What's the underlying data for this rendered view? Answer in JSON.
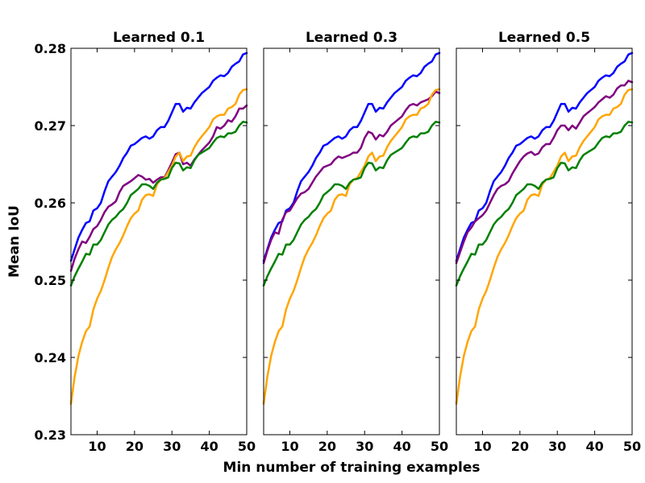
{
  "chart_data": {
    "type": "line",
    "xlabel": "Min number of training examples",
    "ylabel": "Mean IoU",
    "xlim": [
      3,
      50
    ],
    "ylim": [
      0.23,
      0.28
    ],
    "xticks": [
      10,
      20,
      30,
      40,
      50
    ],
    "yticks": [
      "0.23",
      "0.24",
      "0.25",
      "0.26",
      "0.27",
      "0.28"
    ],
    "grid": false,
    "legend": "none",
    "x": [
      3,
      4,
      5,
      6,
      7,
      8,
      9,
      10,
      11,
      12,
      13,
      14,
      15,
      16,
      17,
      18,
      19,
      20,
      21,
      22,
      23,
      24,
      25,
      26,
      27,
      28,
      29,
      30,
      31,
      32,
      33,
      34,
      35,
      36,
      37,
      38,
      39,
      40,
      41,
      42,
      43,
      44,
      45,
      46,
      47,
      48,
      49,
      50
    ],
    "panels": [
      {
        "title": "Learned 0.1",
        "series": [
          {
            "color": "#0000ff",
            "values": [
              0.2525,
              0.254,
              0.2555,
              0.2565,
              0.2574,
              0.2576,
              0.259,
              0.2593,
              0.26,
              0.2615,
              0.2628,
              0.2634,
              0.264,
              0.2648,
              0.2658,
              0.2665,
              0.2674,
              0.2676,
              0.268,
              0.2684,
              0.2686,
              0.2683,
              0.2686,
              0.2694,
              0.2698,
              0.2698,
              0.2706,
              0.2717,
              0.2728,
              0.2728,
              0.2718,
              0.2723,
              0.2722,
              0.273,
              0.2736,
              0.2742,
              0.2746,
              0.275,
              0.2758,
              0.2762,
              0.2765,
              0.2764,
              0.2768,
              0.2776,
              0.278,
              0.2783,
              0.2792,
              0.2794
            ]
          },
          {
            "color": "#800080",
            "values": [
              0.2512,
              0.2528,
              0.254,
              0.255,
              0.2548,
              0.2556,
              0.2566,
              0.257,
              0.2578,
              0.2588,
              0.2595,
              0.2598,
              0.2602,
              0.2614,
              0.2622,
              0.2625,
              0.2628,
              0.2632,
              0.2636,
              0.2634,
              0.263,
              0.2631,
              0.2626,
              0.263,
              0.2633,
              0.2633,
              0.2642,
              0.2652,
              0.2663,
              0.2665,
              0.265,
              0.2652,
              0.2648,
              0.2656,
              0.2662,
              0.2668,
              0.2673,
              0.2678,
              0.2686,
              0.2698,
              0.2696,
              0.27,
              0.2707,
              0.2705,
              0.2712,
              0.2722,
              0.2722,
              0.2726
            ]
          },
          {
            "color": "#ffa500",
            "values": [
              0.234,
              0.2375,
              0.2402,
              0.242,
              0.2434,
              0.244,
              0.2462,
              0.2476,
              0.2486,
              0.25,
              0.2516,
              0.253,
              0.254,
              0.2548,
              0.2558,
              0.257,
              0.258,
              0.2586,
              0.259,
              0.2604,
              0.261,
              0.2611,
              0.2609,
              0.2624,
              0.263,
              0.2632,
              0.264,
              0.2648,
              0.266,
              0.2665,
              0.2654,
              0.266,
              0.2661,
              0.2672,
              0.268,
              0.2686,
              0.2692,
              0.2698,
              0.2708,
              0.2712,
              0.2714,
              0.2714,
              0.2722,
              0.2724,
              0.2728,
              0.274,
              0.2746,
              0.2747
            ]
          },
          {
            "color": "#008000",
            "values": [
              0.2493,
              0.2505,
              0.2515,
              0.2524,
              0.2534,
              0.2533,
              0.2546,
              0.2546,
              0.2552,
              0.2562,
              0.2572,
              0.2578,
              0.2582,
              0.2588,
              0.2592,
              0.26,
              0.261,
              0.2614,
              0.2618,
              0.2624,
              0.2624,
              0.2622,
              0.2618,
              0.2626,
              0.263,
              0.2631,
              0.2633,
              0.2645,
              0.2652,
              0.2651,
              0.2642,
              0.2646,
              0.2645,
              0.2655,
              0.2662,
              0.2665,
              0.2668,
              0.2671,
              0.2678,
              0.2684,
              0.2686,
              0.2685,
              0.269,
              0.269,
              0.2692,
              0.27,
              0.2705,
              0.2704
            ]
          }
        ]
      },
      {
        "title": "Learned 0.3",
        "series": [
          {
            "color": "#0000ff",
            "values": [
              0.2525,
              0.254,
              0.2555,
              0.2565,
              0.2574,
              0.2576,
              0.259,
              0.2593,
              0.26,
              0.2615,
              0.2628,
              0.2634,
              0.264,
              0.2648,
              0.2658,
              0.2665,
              0.2674,
              0.2676,
              0.268,
              0.2684,
              0.2686,
              0.2683,
              0.2686,
              0.2694,
              0.2698,
              0.2698,
              0.2706,
              0.2717,
              0.2728,
              0.2728,
              0.2718,
              0.2723,
              0.2722,
              0.273,
              0.2736,
              0.2742,
              0.2746,
              0.275,
              0.2758,
              0.2762,
              0.2765,
              0.2764,
              0.2768,
              0.2776,
              0.278,
              0.2783,
              0.2792,
              0.2794
            ]
          },
          {
            "color": "#800080",
            "values": [
              0.2522,
              0.2538,
              0.2552,
              0.2562,
              0.256,
              0.2578,
              0.2588,
              0.259,
              0.2598,
              0.2606,
              0.2612,
              0.2614,
              0.2618,
              0.2626,
              0.2634,
              0.264,
              0.2646,
              0.2648,
              0.265,
              0.2656,
              0.266,
              0.2658,
              0.266,
              0.2662,
              0.2665,
              0.2665,
              0.2671,
              0.2684,
              0.2692,
              0.269,
              0.2682,
              0.2688,
              0.2686,
              0.2692,
              0.27,
              0.2704,
              0.2708,
              0.2712,
              0.272,
              0.2726,
              0.2728,
              0.2726,
              0.273,
              0.2732,
              0.2734,
              0.2738,
              0.2744,
              0.2742
            ]
          },
          {
            "color": "#ffa500",
            "values": [
              0.234,
              0.2375,
              0.2402,
              0.242,
              0.2434,
              0.244,
              0.2462,
              0.2476,
              0.2486,
              0.25,
              0.2516,
              0.253,
              0.254,
              0.2548,
              0.2558,
              0.257,
              0.258,
              0.2586,
              0.259,
              0.2604,
              0.261,
              0.2611,
              0.2609,
              0.2624,
              0.263,
              0.2632,
              0.264,
              0.2648,
              0.266,
              0.2665,
              0.2654,
              0.266,
              0.2661,
              0.2672,
              0.268,
              0.2686,
              0.2692,
              0.2698,
              0.2708,
              0.2712,
              0.2714,
              0.2714,
              0.2722,
              0.2724,
              0.2728,
              0.274,
              0.2746,
              0.2747
            ]
          },
          {
            "color": "#008000",
            "values": [
              0.2493,
              0.2505,
              0.2515,
              0.2524,
              0.2534,
              0.2533,
              0.2546,
              0.2546,
              0.2552,
              0.2562,
              0.2572,
              0.2578,
              0.2582,
              0.2588,
              0.2592,
              0.26,
              0.261,
              0.2614,
              0.2618,
              0.2624,
              0.2624,
              0.2622,
              0.2618,
              0.2626,
              0.263,
              0.2631,
              0.2633,
              0.2645,
              0.2652,
              0.2651,
              0.2642,
              0.2646,
              0.2645,
              0.2655,
              0.2662,
              0.2665,
              0.2668,
              0.2671,
              0.2678,
              0.2684,
              0.2686,
              0.2685,
              0.269,
              0.269,
              0.2692,
              0.27,
              0.2705,
              0.2704
            ]
          }
        ]
      },
      {
        "title": "Learned 0.5",
        "series": [
          {
            "color": "#0000ff",
            "values": [
              0.2525,
              0.254,
              0.2555,
              0.2565,
              0.2574,
              0.2576,
              0.259,
              0.2593,
              0.26,
              0.2615,
              0.2628,
              0.2634,
              0.264,
              0.2648,
              0.2658,
              0.2665,
              0.2674,
              0.2676,
              0.268,
              0.2684,
              0.2686,
              0.2683,
              0.2686,
              0.2694,
              0.2698,
              0.2698,
              0.2706,
              0.2717,
              0.2728,
              0.2728,
              0.2718,
              0.2723,
              0.2722,
              0.273,
              0.2736,
              0.2742,
              0.2746,
              0.275,
              0.2758,
              0.2762,
              0.2765,
              0.2764,
              0.2768,
              0.2776,
              0.278,
              0.2783,
              0.2792,
              0.2794
            ]
          },
          {
            "color": "#800080",
            "values": [
              0.2522,
              0.2536,
              0.255,
              0.2562,
              0.2568,
              0.2576,
              0.258,
              0.2584,
              0.259,
              0.26,
              0.261,
              0.2618,
              0.2622,
              0.2624,
              0.2628,
              0.2638,
              0.2646,
              0.2654,
              0.266,
              0.2664,
              0.2666,
              0.2662,
              0.2664,
              0.2672,
              0.2676,
              0.2676,
              0.2684,
              0.2694,
              0.27,
              0.27,
              0.2694,
              0.27,
              0.2696,
              0.2704,
              0.2712,
              0.2716,
              0.272,
              0.2724,
              0.273,
              0.2734,
              0.2738,
              0.2736,
              0.274,
              0.2748,
              0.2752,
              0.2752,
              0.2758,
              0.2756
            ]
          },
          {
            "color": "#ffa500",
            "values": [
              0.234,
              0.2375,
              0.2402,
              0.242,
              0.2434,
              0.244,
              0.2462,
              0.2476,
              0.2486,
              0.25,
              0.2516,
              0.253,
              0.254,
              0.2548,
              0.2558,
              0.257,
              0.258,
              0.2586,
              0.259,
              0.2604,
              0.261,
              0.2611,
              0.2609,
              0.2624,
              0.263,
              0.2632,
              0.264,
              0.2648,
              0.266,
              0.2665,
              0.2654,
              0.266,
              0.2661,
              0.2672,
              0.268,
              0.2686,
              0.2692,
              0.2698,
              0.2708,
              0.2712,
              0.2714,
              0.2714,
              0.2722,
              0.2724,
              0.2728,
              0.274,
              0.2746,
              0.2747
            ]
          },
          {
            "color": "#008000",
            "values": [
              0.2493,
              0.2505,
              0.2515,
              0.2524,
              0.2534,
              0.2533,
              0.2546,
              0.2546,
              0.2552,
              0.2562,
              0.2572,
              0.2578,
              0.2582,
              0.2588,
              0.2592,
              0.26,
              0.261,
              0.2614,
              0.2618,
              0.2624,
              0.2624,
              0.2622,
              0.2618,
              0.2626,
              0.263,
              0.2631,
              0.2633,
              0.2645,
              0.2652,
              0.2651,
              0.2642,
              0.2646,
              0.2645,
              0.2655,
              0.2662,
              0.2665,
              0.2668,
              0.2671,
              0.2678,
              0.2684,
              0.2686,
              0.2685,
              0.269,
              0.269,
              0.2692,
              0.27,
              0.2705,
              0.2704
            ]
          }
        ]
      }
    ]
  }
}
